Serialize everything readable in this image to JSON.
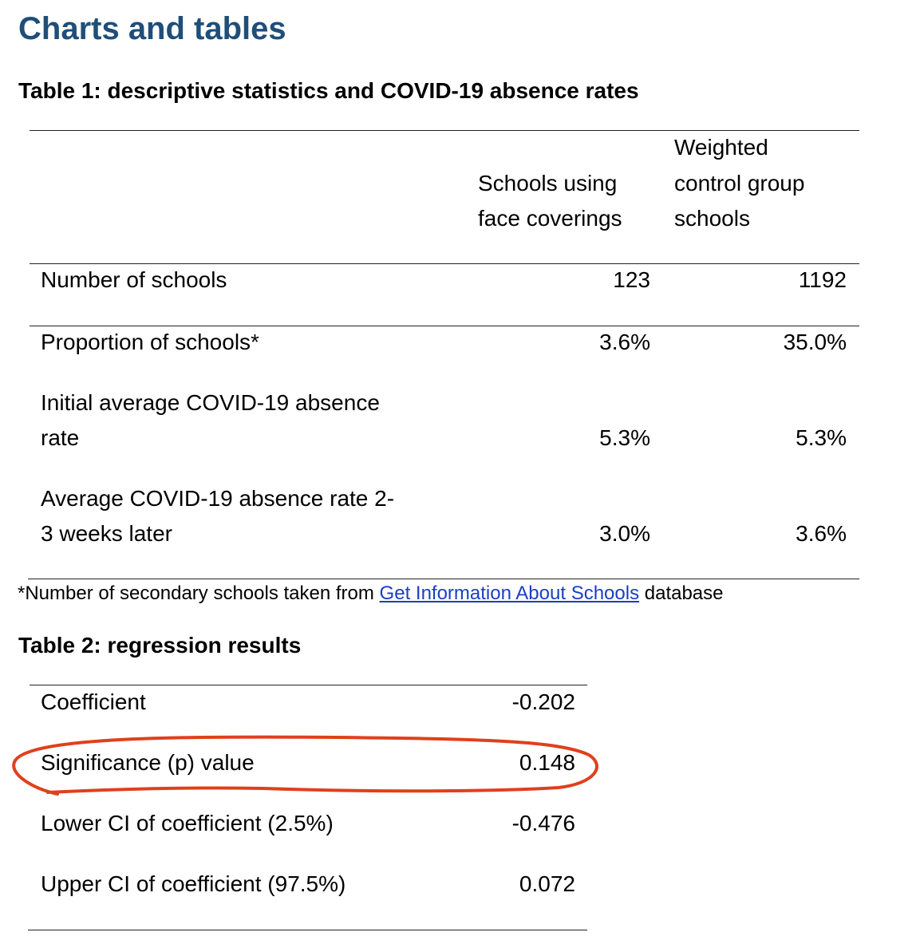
{
  "page_title": "Charts and tables",
  "table1": {
    "title": "Table 1: descriptive statistics and COVID-19 absence rates",
    "col1_header": [
      "Schools using",
      "face coverings"
    ],
    "col2_header": [
      "Weighted",
      "control group",
      "schools"
    ],
    "rows": [
      {
        "label": [
          "Number of schools"
        ],
        "v1": "123",
        "v2": "1192"
      },
      {
        "label": [
          "Proportion of schools*"
        ],
        "v1": "3.6%",
        "v2": "35.0%"
      },
      {
        "label": [
          "Initial average COVID-19 absence",
          "rate"
        ],
        "v1": "5.3%",
        "v2": "5.3%"
      },
      {
        "label": [
          "Average COVID-19 absence rate 2-",
          "3 weeks later"
        ],
        "v1": "3.0%",
        "v2": "3.6%"
      }
    ],
    "footnote": {
      "prefix": "*Number of secondary schools taken from ",
      "link": "Get Information About Schools",
      "suffix": " database"
    }
  },
  "table2": {
    "title": "Table 2: regression results",
    "rows": [
      {
        "label": "Coefficient",
        "value": "-0.202"
      },
      {
        "label": "Significance (p) value",
        "value": "0.148"
      },
      {
        "label": "Lower CI of coefficient (2.5%)",
        "value": "-0.476"
      },
      {
        "label": "Upper CI of coefficient (97.5%)",
        "value": "0.072"
      }
    ]
  },
  "annotation": {
    "color": "#e0401c"
  }
}
